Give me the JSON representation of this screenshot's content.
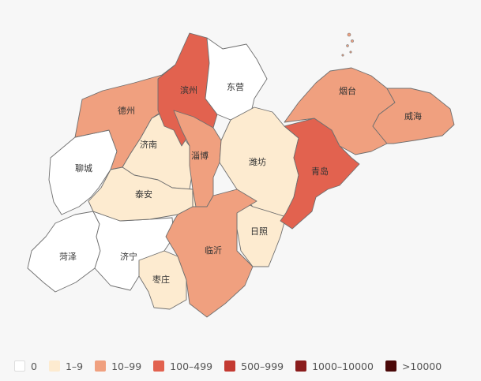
{
  "bins": [
    {
      "label": "0",
      "color": "#ffffff"
    },
    {
      "label": "1–9",
      "color": "#fdebd0"
    },
    {
      "label": "10–99",
      "color": "#f0a07f"
    },
    {
      "label": "100–499",
      "color": "#e2624f"
    },
    {
      "label": "500–999",
      "color": "#c43a32"
    },
    {
      "label": "1000–10000",
      "color": "#8a1c1c"
    },
    {
      "label": ">10000",
      "color": "#4a0808"
    }
  ],
  "regions": {
    "binzhou": {
      "name": "滨州",
      "bin": 3
    },
    "dongying": {
      "name": "东营",
      "bin": 0
    },
    "dezhou": {
      "name": "德州",
      "bin": 2
    },
    "liaocheng": {
      "name": "聊城",
      "bin": 0
    },
    "jinan": {
      "name": "济南",
      "bin": 1
    },
    "zibo": {
      "name": "淄博",
      "bin": 2
    },
    "weifang": {
      "name": "潍坊",
      "bin": 1
    },
    "yantai": {
      "name": "烟台",
      "bin": 2
    },
    "weihai": {
      "name": "威海",
      "bin": 2
    },
    "qingdao": {
      "name": "青岛",
      "bin": 3
    },
    "taian": {
      "name": "泰安",
      "bin": 1
    },
    "laiwu": {
      "name": "",
      "bin": 1
    },
    "rizhao": {
      "name": "日照",
      "bin": 1
    },
    "linyi": {
      "name": "临沂",
      "bin": 2
    },
    "heze": {
      "name": "菏泽",
      "bin": 0
    },
    "jining": {
      "name": "济宁",
      "bin": 0
    },
    "zaozhuang": {
      "name": "枣庄",
      "bin": 1
    }
  }
}
